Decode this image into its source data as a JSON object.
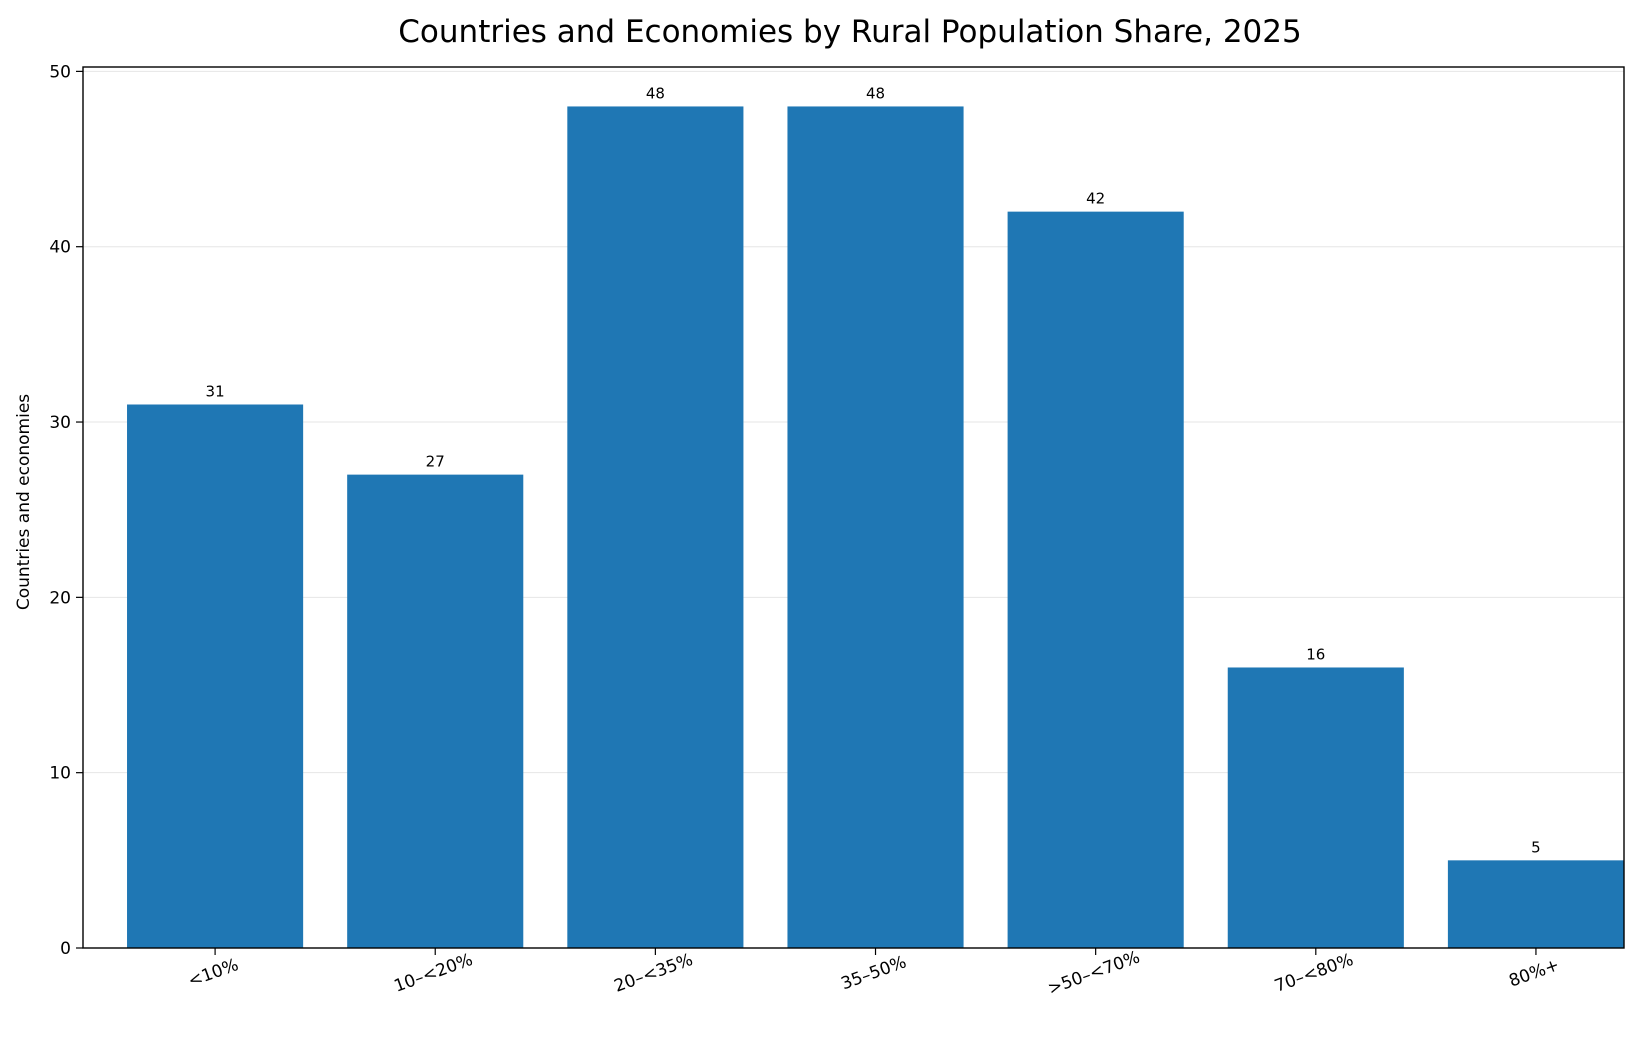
{
  "chart_data": {
    "type": "bar",
    "title": "Countries and Economies by Rural Population Share, 2025",
    "xlabel": "",
    "ylabel": "Countries and economies",
    "categories": [
      "<10%",
      "10–<20%",
      "20–<35%",
      "35–50%",
      ">50–<70%",
      "70–<80%",
      "80%+"
    ],
    "values": [
      31,
      27,
      48,
      48,
      42,
      16,
      5
    ],
    "data_labels": [
      "31",
      "27",
      "48",
      "48",
      "42",
      "16",
      "5"
    ],
    "ylim": [
      0,
      50
    ],
    "yticks": [
      0,
      10,
      20,
      30,
      40,
      50
    ],
    "ytick_labels": [
      "0",
      "10",
      "20",
      "30",
      "40",
      "50"
    ],
    "grid": "horizontal",
    "legend": "none",
    "bar_color": "#1f77b4",
    "grid_color": "#e6e6e6"
  }
}
